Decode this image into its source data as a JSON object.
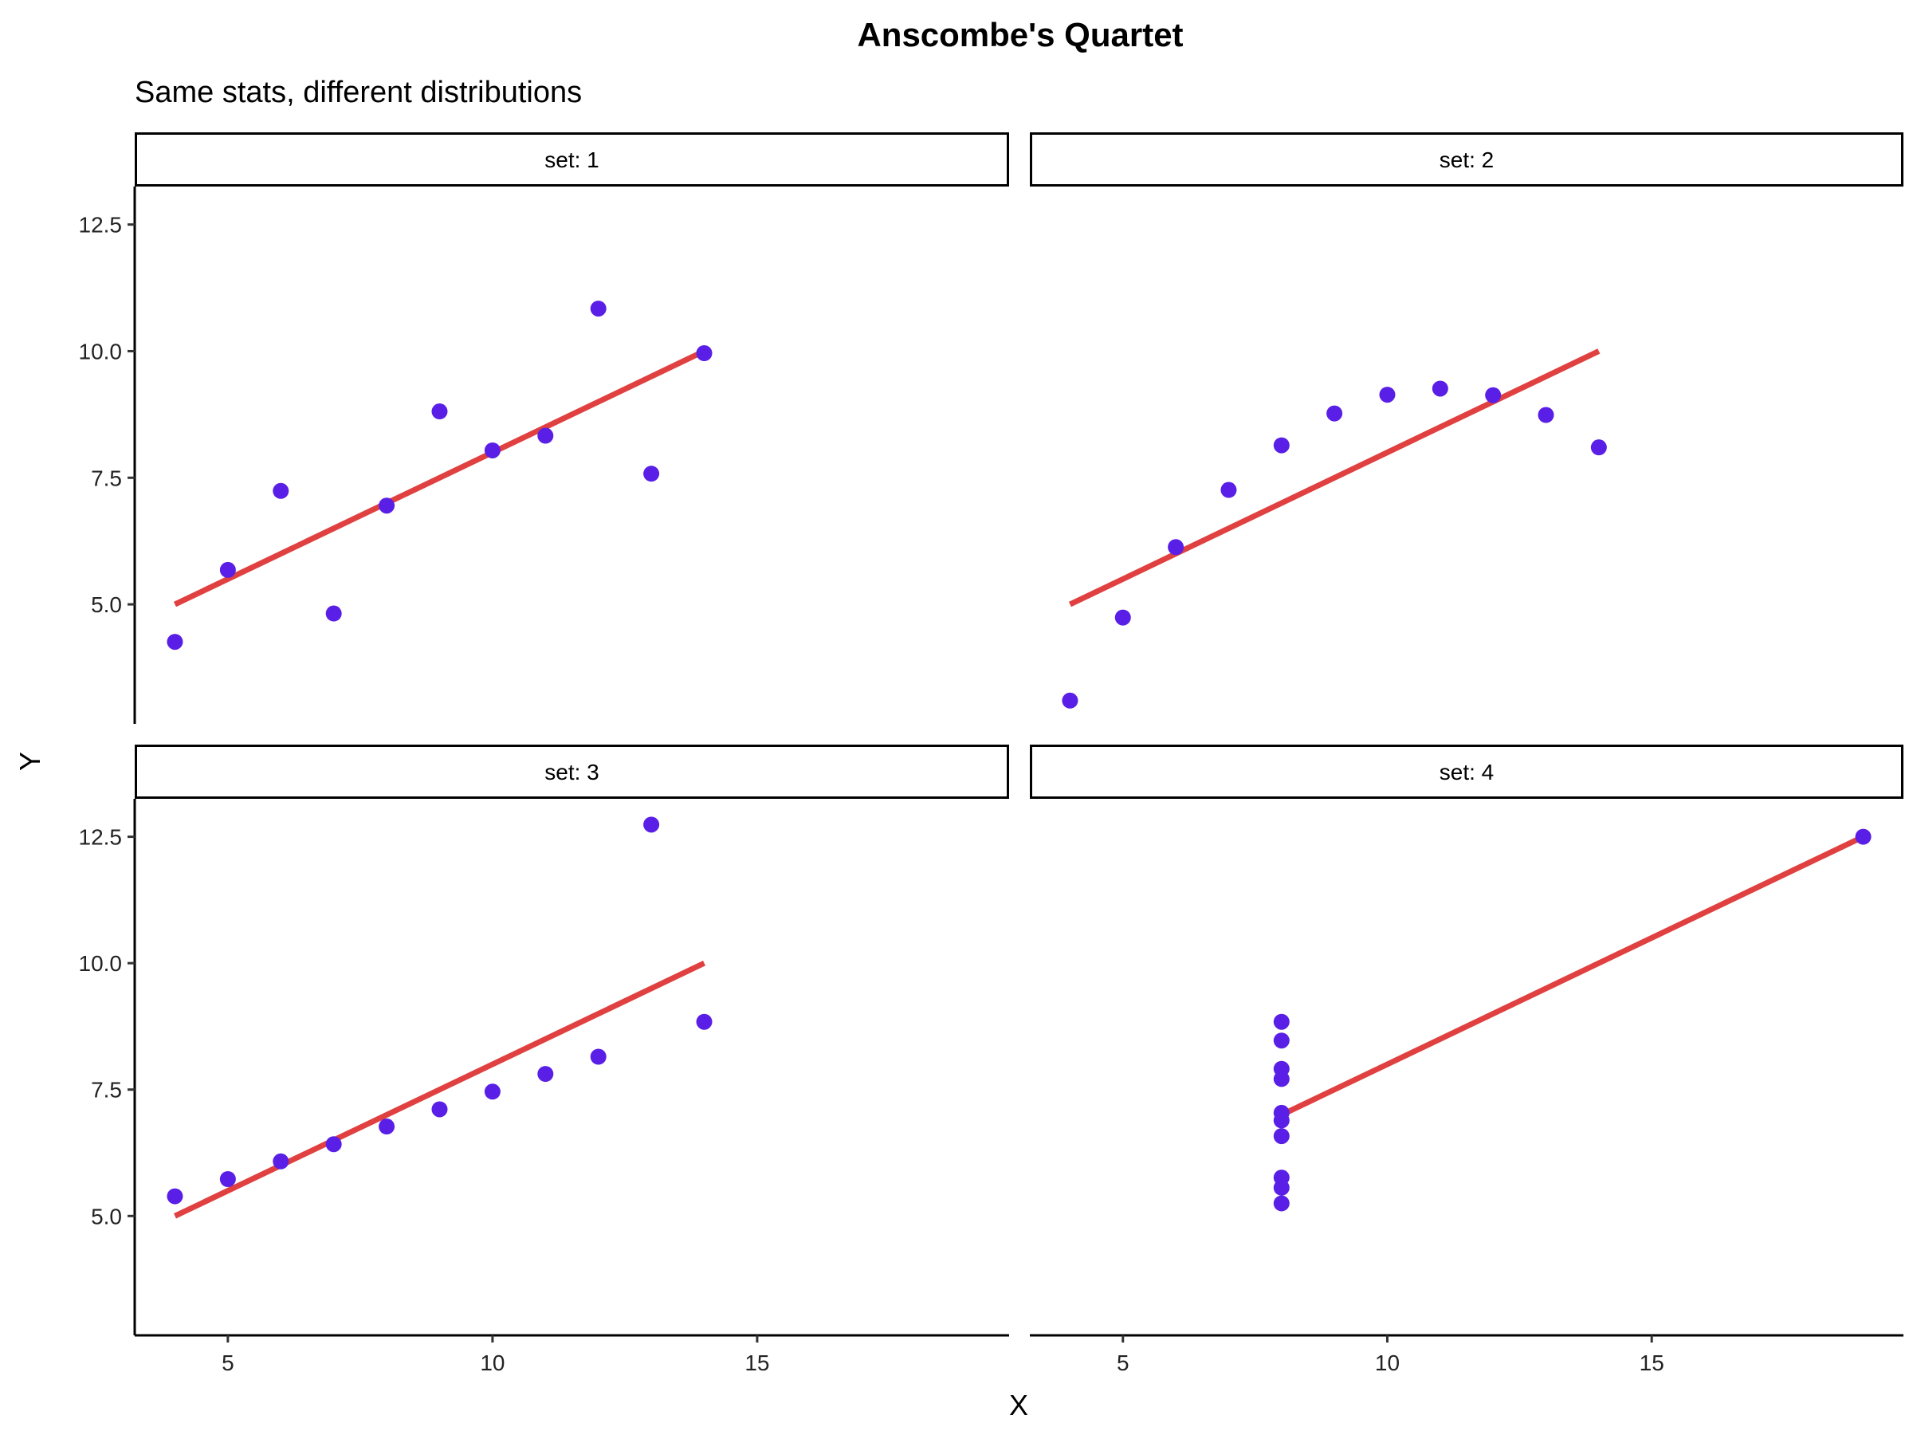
{
  "chart_data": {
    "type": "scatter",
    "title": "Anscombe's Quartet",
    "subtitle": "Same stats, different distributions",
    "xlabel": "X",
    "ylabel": "Y",
    "xlim": [
      3.24,
      19.76
    ],
    "ylim": [
      2.64,
      13.25
    ],
    "xticks": [
      5,
      10,
      15
    ],
    "xtick_labels": [
      "5",
      "10",
      "15"
    ],
    "yticks": [
      5,
      7.5,
      10,
      12.5
    ],
    "ytick_labels": [
      "5.0",
      "7.5",
      "10.0",
      "12.5"
    ],
    "grid": false,
    "colors": {
      "points": "#5a1fe6",
      "fit_line": "#e04040"
    },
    "fit_line": {
      "intercept": 3.0,
      "slope": 0.5
    },
    "panels": [
      {
        "label": "set: 1",
        "x": [
          10,
          8,
          13,
          9,
          11,
          14,
          6,
          4,
          12,
          7,
          5
        ],
        "y": [
          8.04,
          6.95,
          7.58,
          8.81,
          8.33,
          9.96,
          7.24,
          4.26,
          10.84,
          4.82,
          5.68
        ]
      },
      {
        "label": "set: 2",
        "x": [
          10,
          8,
          13,
          9,
          11,
          14,
          6,
          4,
          12,
          7,
          5
        ],
        "y": [
          9.14,
          8.14,
          8.74,
          8.77,
          9.26,
          8.1,
          6.13,
          3.1,
          9.13,
          7.26,
          4.74
        ]
      },
      {
        "label": "set: 3",
        "x": [
          10,
          8,
          13,
          9,
          11,
          14,
          6,
          4,
          12,
          7,
          5
        ],
        "y": [
          7.46,
          6.77,
          12.74,
          7.11,
          7.81,
          8.84,
          6.08,
          5.39,
          8.15,
          6.42,
          5.73
        ]
      },
      {
        "label": "set: 4",
        "x": [
          8,
          8,
          8,
          8,
          8,
          8,
          8,
          19,
          8,
          8,
          8
        ],
        "y": [
          6.58,
          5.76,
          7.71,
          8.84,
          8.47,
          7.04,
          5.25,
          12.5,
          5.56,
          7.91,
          6.89
        ]
      }
    ]
  }
}
